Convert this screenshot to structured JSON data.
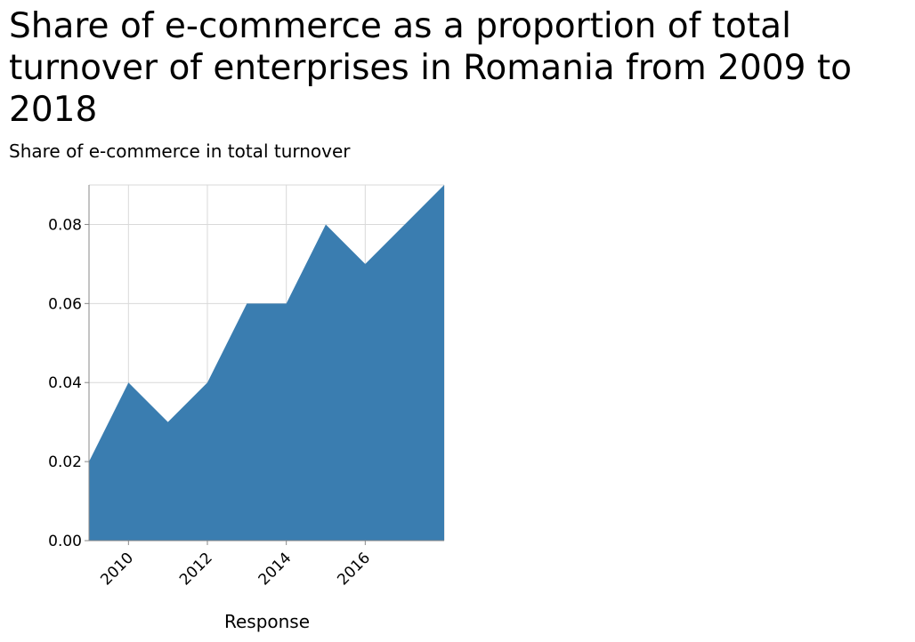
{
  "chart_data": {
    "type": "area",
    "title": "Share of e-commerce as a proportion of total turnover of enterprises in Romania from 2009 to 2018",
    "ylabel": "Share of e-commerce in total turnover",
    "xlabel": "Response",
    "x": [
      2009,
      2010,
      2011,
      2012,
      2013,
      2014,
      2015,
      2016,
      2017,
      2018
    ],
    "values": [
      0.02,
      0.04,
      0.03,
      0.04,
      0.06,
      0.06,
      0.08,
      0.07,
      0.08,
      0.09
    ],
    "xlim": [
      2009,
      2018
    ],
    "ylim": [
      0,
      0.09
    ],
    "x_ticks": [
      2010,
      2012,
      2014,
      2016
    ],
    "x_tick_labels": [
      "2010",
      "2012",
      "2014",
      "2016"
    ],
    "y_ticks": [
      0,
      0.02,
      0.04,
      0.06,
      0.08
    ],
    "y_tick_labels": [
      "0.00",
      "0.02",
      "0.04",
      "0.06",
      "0.08"
    ],
    "grid": true,
    "fill_color": "#3a7db0",
    "grid_color": "#d9d9d9",
    "axis_color": "#888888"
  }
}
